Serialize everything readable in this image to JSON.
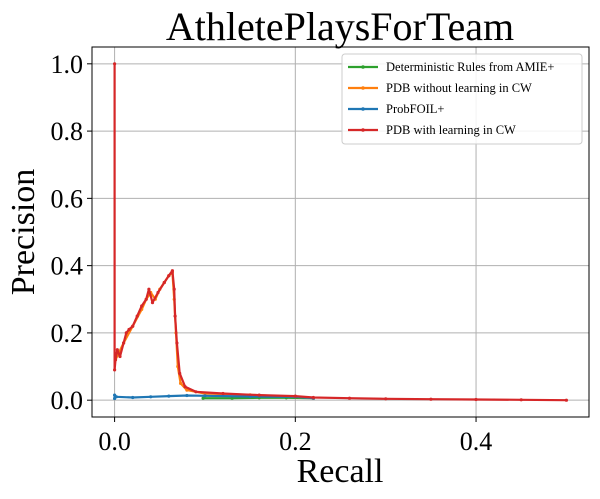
{
  "chart_data": {
    "type": "line",
    "title": "AthletePlaysForTeam",
    "xlabel": "Recall",
    "ylabel": "Precision",
    "xlim": [
      -0.025,
      0.525
    ],
    "ylim": [
      -0.05,
      1.05
    ],
    "xticks": [
      0.0,
      0.2,
      0.4
    ],
    "xtick_labels": [
      "0.0",
      "0.2",
      "0.4"
    ],
    "yticks": [
      0.0,
      0.2,
      0.4,
      0.6,
      0.8,
      1.0
    ],
    "ytick_labels": [
      "0.0",
      "0.2",
      "0.4",
      "0.6",
      "0.8",
      "1.0"
    ],
    "grid": true,
    "legend_position": "top-right",
    "series": [
      {
        "name": "Deterministic Rules from AMIE+",
        "color": "#2ca02c",
        "points": [
          [
            0.098,
            0.006
          ],
          [
            0.13,
            0.006
          ],
          [
            0.16,
            0.007
          ],
          [
            0.19,
            0.007
          ],
          [
            0.22,
            0.006
          ]
        ]
      },
      {
        "name": "PDB without learning in CW",
        "color": "#ff7f0e",
        "points": [
          [
            0.001,
            0.12
          ],
          [
            0.01,
            0.17
          ],
          [
            0.02,
            0.22
          ],
          [
            0.03,
            0.27
          ],
          [
            0.035,
            0.3
          ],
          [
            0.04,
            0.32
          ],
          [
            0.045,
            0.3
          ],
          [
            0.05,
            0.33
          ],
          [
            0.055,
            0.35
          ],
          [
            0.06,
            0.37
          ],
          [
            0.064,
            0.38
          ],
          [
            0.066,
            0.3
          ],
          [
            0.068,
            0.2
          ],
          [
            0.07,
            0.1
          ],
          [
            0.073,
            0.05
          ],
          [
            0.08,
            0.03
          ],
          [
            0.1,
            0.02
          ],
          [
            0.15,
            0.016
          ],
          [
            0.2,
            0.01
          ],
          [
            0.22,
            0.006
          ]
        ]
      },
      {
        "name": "ProbFOIL+",
        "color": "#1f77b4",
        "points": [
          [
            0.0,
            0.005
          ],
          [
            0.0,
            0.015
          ],
          [
            0.002,
            0.01
          ],
          [
            0.02,
            0.008
          ],
          [
            0.04,
            0.01
          ],
          [
            0.06,
            0.012
          ],
          [
            0.08,
            0.014
          ],
          [
            0.1,
            0.013
          ],
          [
            0.15,
            0.011
          ],
          [
            0.2,
            0.01
          ],
          [
            0.22,
            0.006
          ]
        ]
      },
      {
        "name": "PDB with learning in CW",
        "color": "#d62728",
        "points": [
          [
            0.0,
            1.0
          ],
          [
            0.0,
            0.09
          ],
          [
            0.001,
            0.12
          ],
          [
            0.003,
            0.15
          ],
          [
            0.006,
            0.13
          ],
          [
            0.01,
            0.17
          ],
          [
            0.013,
            0.2
          ],
          [
            0.016,
            0.21
          ],
          [
            0.02,
            0.22
          ],
          [
            0.025,
            0.25
          ],
          [
            0.03,
            0.28
          ],
          [
            0.035,
            0.3
          ],
          [
            0.038,
            0.33
          ],
          [
            0.042,
            0.29
          ],
          [
            0.048,
            0.32
          ],
          [
            0.055,
            0.35
          ],
          [
            0.06,
            0.37
          ],
          [
            0.064,
            0.385
          ],
          [
            0.066,
            0.33
          ],
          [
            0.067,
            0.25
          ],
          [
            0.069,
            0.17
          ],
          [
            0.072,
            0.08
          ],
          [
            0.078,
            0.04
          ],
          [
            0.09,
            0.025
          ],
          [
            0.12,
            0.02
          ],
          [
            0.16,
            0.015
          ],
          [
            0.2,
            0.012
          ],
          [
            0.22,
            0.008
          ],
          [
            0.26,
            0.006
          ],
          [
            0.3,
            0.004
          ],
          [
            0.35,
            0.003
          ],
          [
            0.4,
            0.002
          ],
          [
            0.45,
            0.001
          ],
          [
            0.5,
            0.0
          ]
        ]
      }
    ]
  }
}
